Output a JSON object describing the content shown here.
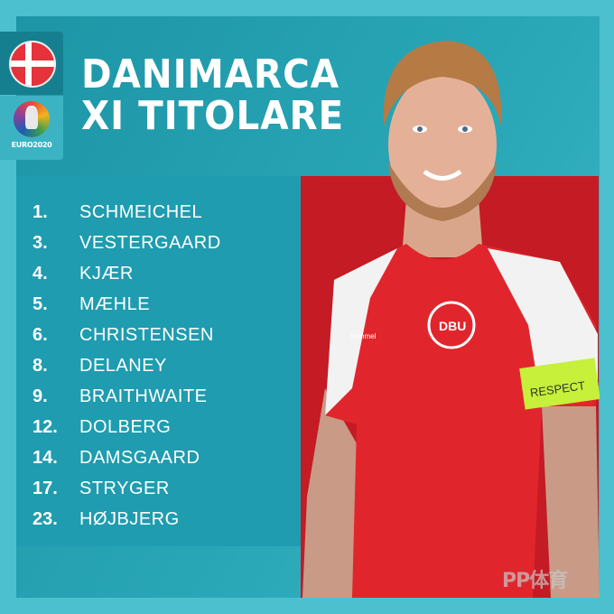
{
  "header": {
    "title_line1": "DANIMARCA",
    "title_line2": "XI TITOLARE"
  },
  "badges": {
    "flag": "denmark-flag",
    "tournament_logo_text": "EURO2020"
  },
  "lineup": [
    {
      "number": "1.",
      "name": "SCHMEICHEL"
    },
    {
      "number": "3.",
      "name": "VESTERGAARD"
    },
    {
      "number": "4.",
      "name": "KJÆR"
    },
    {
      "number": "5.",
      "name": "MÆHLE"
    },
    {
      "number": "6.",
      "name": "CHRISTENSEN"
    },
    {
      "number": "8.",
      "name": "DELANEY"
    },
    {
      "number": "9.",
      "name": "BRAITHWAITE"
    },
    {
      "number": "12.",
      "name": "DOLBERG"
    },
    {
      "number": "14.",
      "name": "DAMSGAARD"
    },
    {
      "number": "17.",
      "name": "STRYGER"
    },
    {
      "number": "23.",
      "name": "HØJBJERG"
    }
  ],
  "photo": {
    "armband_text": "RESPECT",
    "crest_text": "DBU",
    "kit_brand": "hummel"
  },
  "watermark": "PP体育",
  "colors": {
    "teal": "#1d95a6",
    "light_teal": "#4cc0cf",
    "red": "#c41b24",
    "armband": "#c6f03a"
  }
}
